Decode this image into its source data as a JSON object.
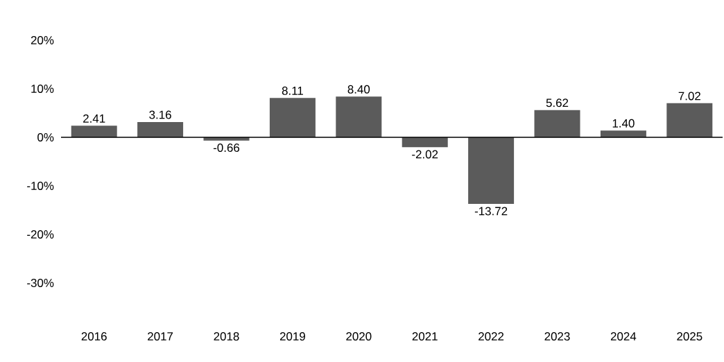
{
  "chart_data": {
    "type": "bar",
    "categories": [
      "2016",
      "2017",
      "2018",
      "2019",
      "2020",
      "2021",
      "2022",
      "2023",
      "2024",
      "2025"
    ],
    "values": [
      2.41,
      3.16,
      -0.66,
      8.11,
      8.4,
      -2.02,
      -13.72,
      5.62,
      1.4,
      7.02
    ],
    "value_labels": [
      "2.41",
      "3.16",
      "-0.66",
      "8.11",
      "8.40",
      "-2.02",
      "-13.72",
      "5.62",
      "1.40",
      "7.02"
    ],
    "color": "#5b5b5b",
    "ylim": [
      -30,
      20
    ],
    "yticks": [
      {
        "value": 20,
        "label": "20%"
      },
      {
        "value": 10,
        "label": "10%"
      },
      {
        "value": 0,
        "label": "0%"
      },
      {
        "value": -10,
        "label": "-10%"
      },
      {
        "value": -20,
        "label": "-20%"
      },
      {
        "value": -30,
        "label": "-30%"
      }
    ]
  }
}
